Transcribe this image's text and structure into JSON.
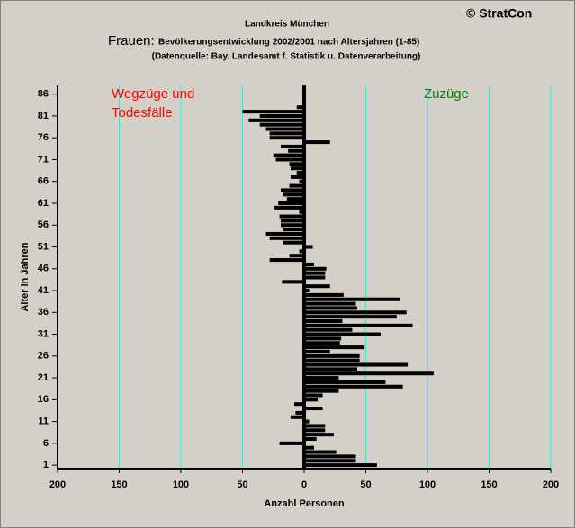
{
  "chart_data": {
    "type": "barh",
    "title": "Landkreis München",
    "heading": "Frauen:",
    "subtitle": "Bevölkerungsentwicklung 2002/2001  nach Altersjahren (1-85)",
    "source": "(Datenquelle: Bay. Landesamt f. Statistik u. Datenverarbeitung)",
    "copyright": "© StratCon",
    "annotations": [
      {
        "text": "Wegzüge und",
        "color": "#ff0000"
      },
      {
        "text": "Todesfälle",
        "color": "#ff0000"
      },
      {
        "text": "Zuzüge",
        "color": "#008000"
      }
    ],
    "x_label": "Anzahl Personen",
    "y_label": "Alter in Jahren",
    "y": [
      1,
      2,
      3,
      4,
      5,
      6,
      7,
      8,
      9,
      10,
      11,
      12,
      13,
      14,
      15,
      16,
      17,
      18,
      19,
      20,
      21,
      22,
      23,
      24,
      25,
      26,
      27,
      28,
      29,
      30,
      31,
      32,
      33,
      34,
      35,
      36,
      37,
      38,
      39,
      40,
      41,
      42,
      43,
      44,
      45,
      46,
      47,
      48,
      49,
      50,
      51,
      52,
      53,
      54,
      55,
      56,
      57,
      58,
      59,
      60,
      61,
      62,
      63,
      64,
      65,
      66,
      67,
      68,
      69,
      70,
      71,
      72,
      73,
      74,
      75,
      76,
      77,
      78,
      79,
      80,
      81,
      82,
      83,
      84,
      85
    ],
    "values": [
      59,
      42,
      42,
      26,
      8,
      -20,
      10,
      24,
      17,
      17,
      4,
      -11,
      -7,
      15,
      -8,
      11,
      15,
      28,
      80,
      66,
      28,
      105,
      43,
      84,
      45,
      45,
      21,
      49,
      29,
      30,
      62,
      39,
      88,
      31,
      75,
      83,
      43,
      42,
      78,
      32,
      4,
      21,
      -18,
      17,
      17,
      18,
      8,
      -28,
      -12,
      -4,
      7,
      -17,
      -28,
      -31,
      -17,
      -19,
      -19,
      -20,
      -4,
      -24,
      -21,
      -14,
      -17,
      -19,
      -12,
      -4,
      -11,
      -6,
      -11,
      -12,
      -23,
      -25,
      -13,
      -19,
      21,
      -28,
      -28,
      -31,
      -36,
      -45,
      -36,
      -50,
      -6,
      0,
      0
    ],
    "color": "#000000",
    "grid_color": "#00ffff",
    "grid": true,
    "xlim": [
      -200,
      200
    ],
    "xticks": [
      {
        "value": -200,
        "label": "200"
      },
      {
        "value": -150,
        "label": "150"
      },
      {
        "value": -100,
        "label": "100"
      },
      {
        "value": -50,
        "label": "50"
      },
      0,
      50,
      100,
      150,
      200
    ],
    "ylim": [
      0.2,
      88
    ],
    "yticks": [
      1,
      6,
      11,
      16,
      21,
      26,
      31,
      36,
      41,
      46,
      51,
      56,
      61,
      66,
      71,
      76,
      81,
      86
    ]
  }
}
